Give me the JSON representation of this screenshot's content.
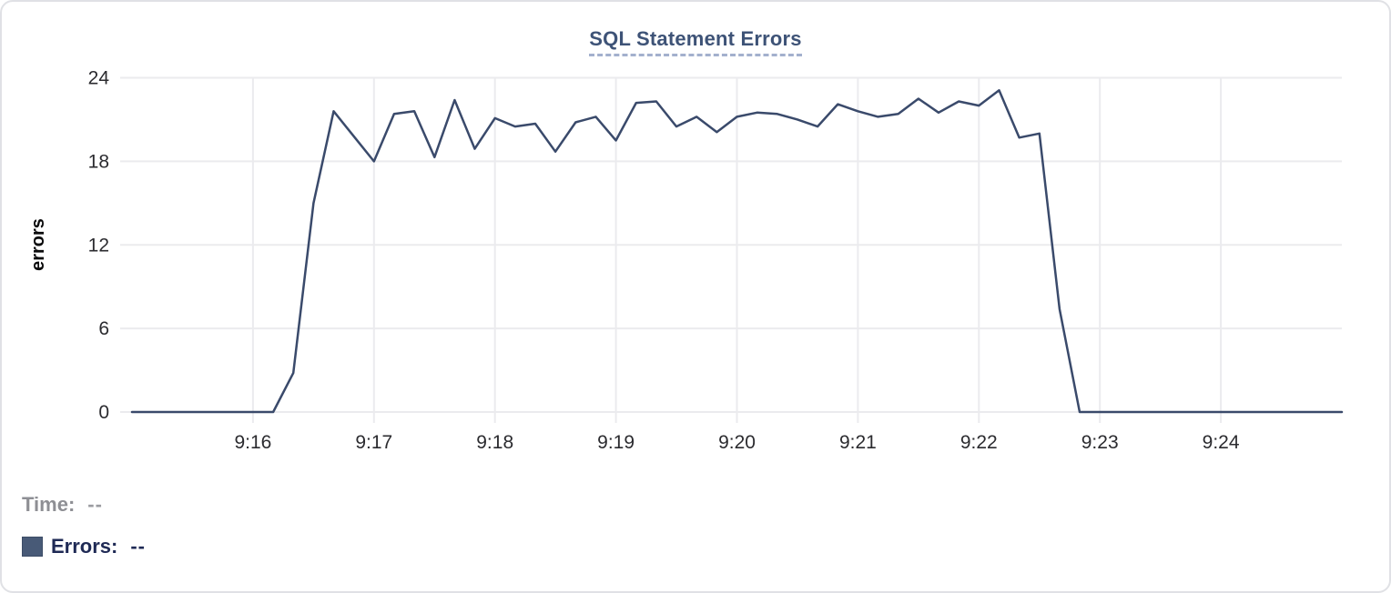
{
  "card": {
    "background": "#ffffff",
    "border_color": "#e0e1e5"
  },
  "chart": {
    "title": "SQL Statement Errors",
    "title_color": "#3e5377",
    "underline_color": "#a3b0cd"
  },
  "tooltip": {
    "time_label": "Time:",
    "time_value": "--",
    "time_label_color": "#8e8f94",
    "series_label": "Errors:",
    "series_value": "--",
    "series_label_color": "#1f2a55",
    "swatch_color": "#485a77"
  },
  "chart_data": {
    "type": "line",
    "title": "SQL Statement Errors",
    "xlabel": "",
    "ylabel": "errors",
    "series_name": "Errors",
    "x_start": "9:15:00",
    "x_end": "9:25:00",
    "sample_interval_seconds": 10,
    "x_tick_labels": [
      "9:16",
      "9:17",
      "9:18",
      "9:19",
      "9:20",
      "9:21",
      "9:22",
      "9:23",
      "9:24"
    ],
    "y_ticks": [
      0,
      6,
      12,
      18,
      24
    ],
    "ylim": [
      0,
      24
    ],
    "grid": true,
    "legend_position": "bottom-left",
    "line_color": "#3a4a6b",
    "grid_color": "#ebebee",
    "tick_label_color": "#2b2b2f",
    "values": [
      0,
      0,
      0,
      0,
      0,
      0,
      0,
      0,
      2.8,
      15,
      21.6,
      19.8,
      18,
      21.4,
      21.6,
      18.3,
      22.4,
      18.9,
      21.1,
      20.5,
      20.7,
      18.7,
      20.8,
      21.2,
      19.5,
      22.2,
      22.3,
      20.5,
      21.2,
      20.1,
      21.2,
      21.5,
      21.4,
      21,
      20.5,
      22.1,
      21.6,
      21.2,
      21.4,
      22.5,
      21.5,
      22.3,
      22,
      23.1,
      19.7,
      20,
      7.4,
      0,
      0,
      0,
      0,
      0,
      0,
      0,
      0,
      0,
      0,
      0,
      0,
      0,
      0
    ]
  }
}
